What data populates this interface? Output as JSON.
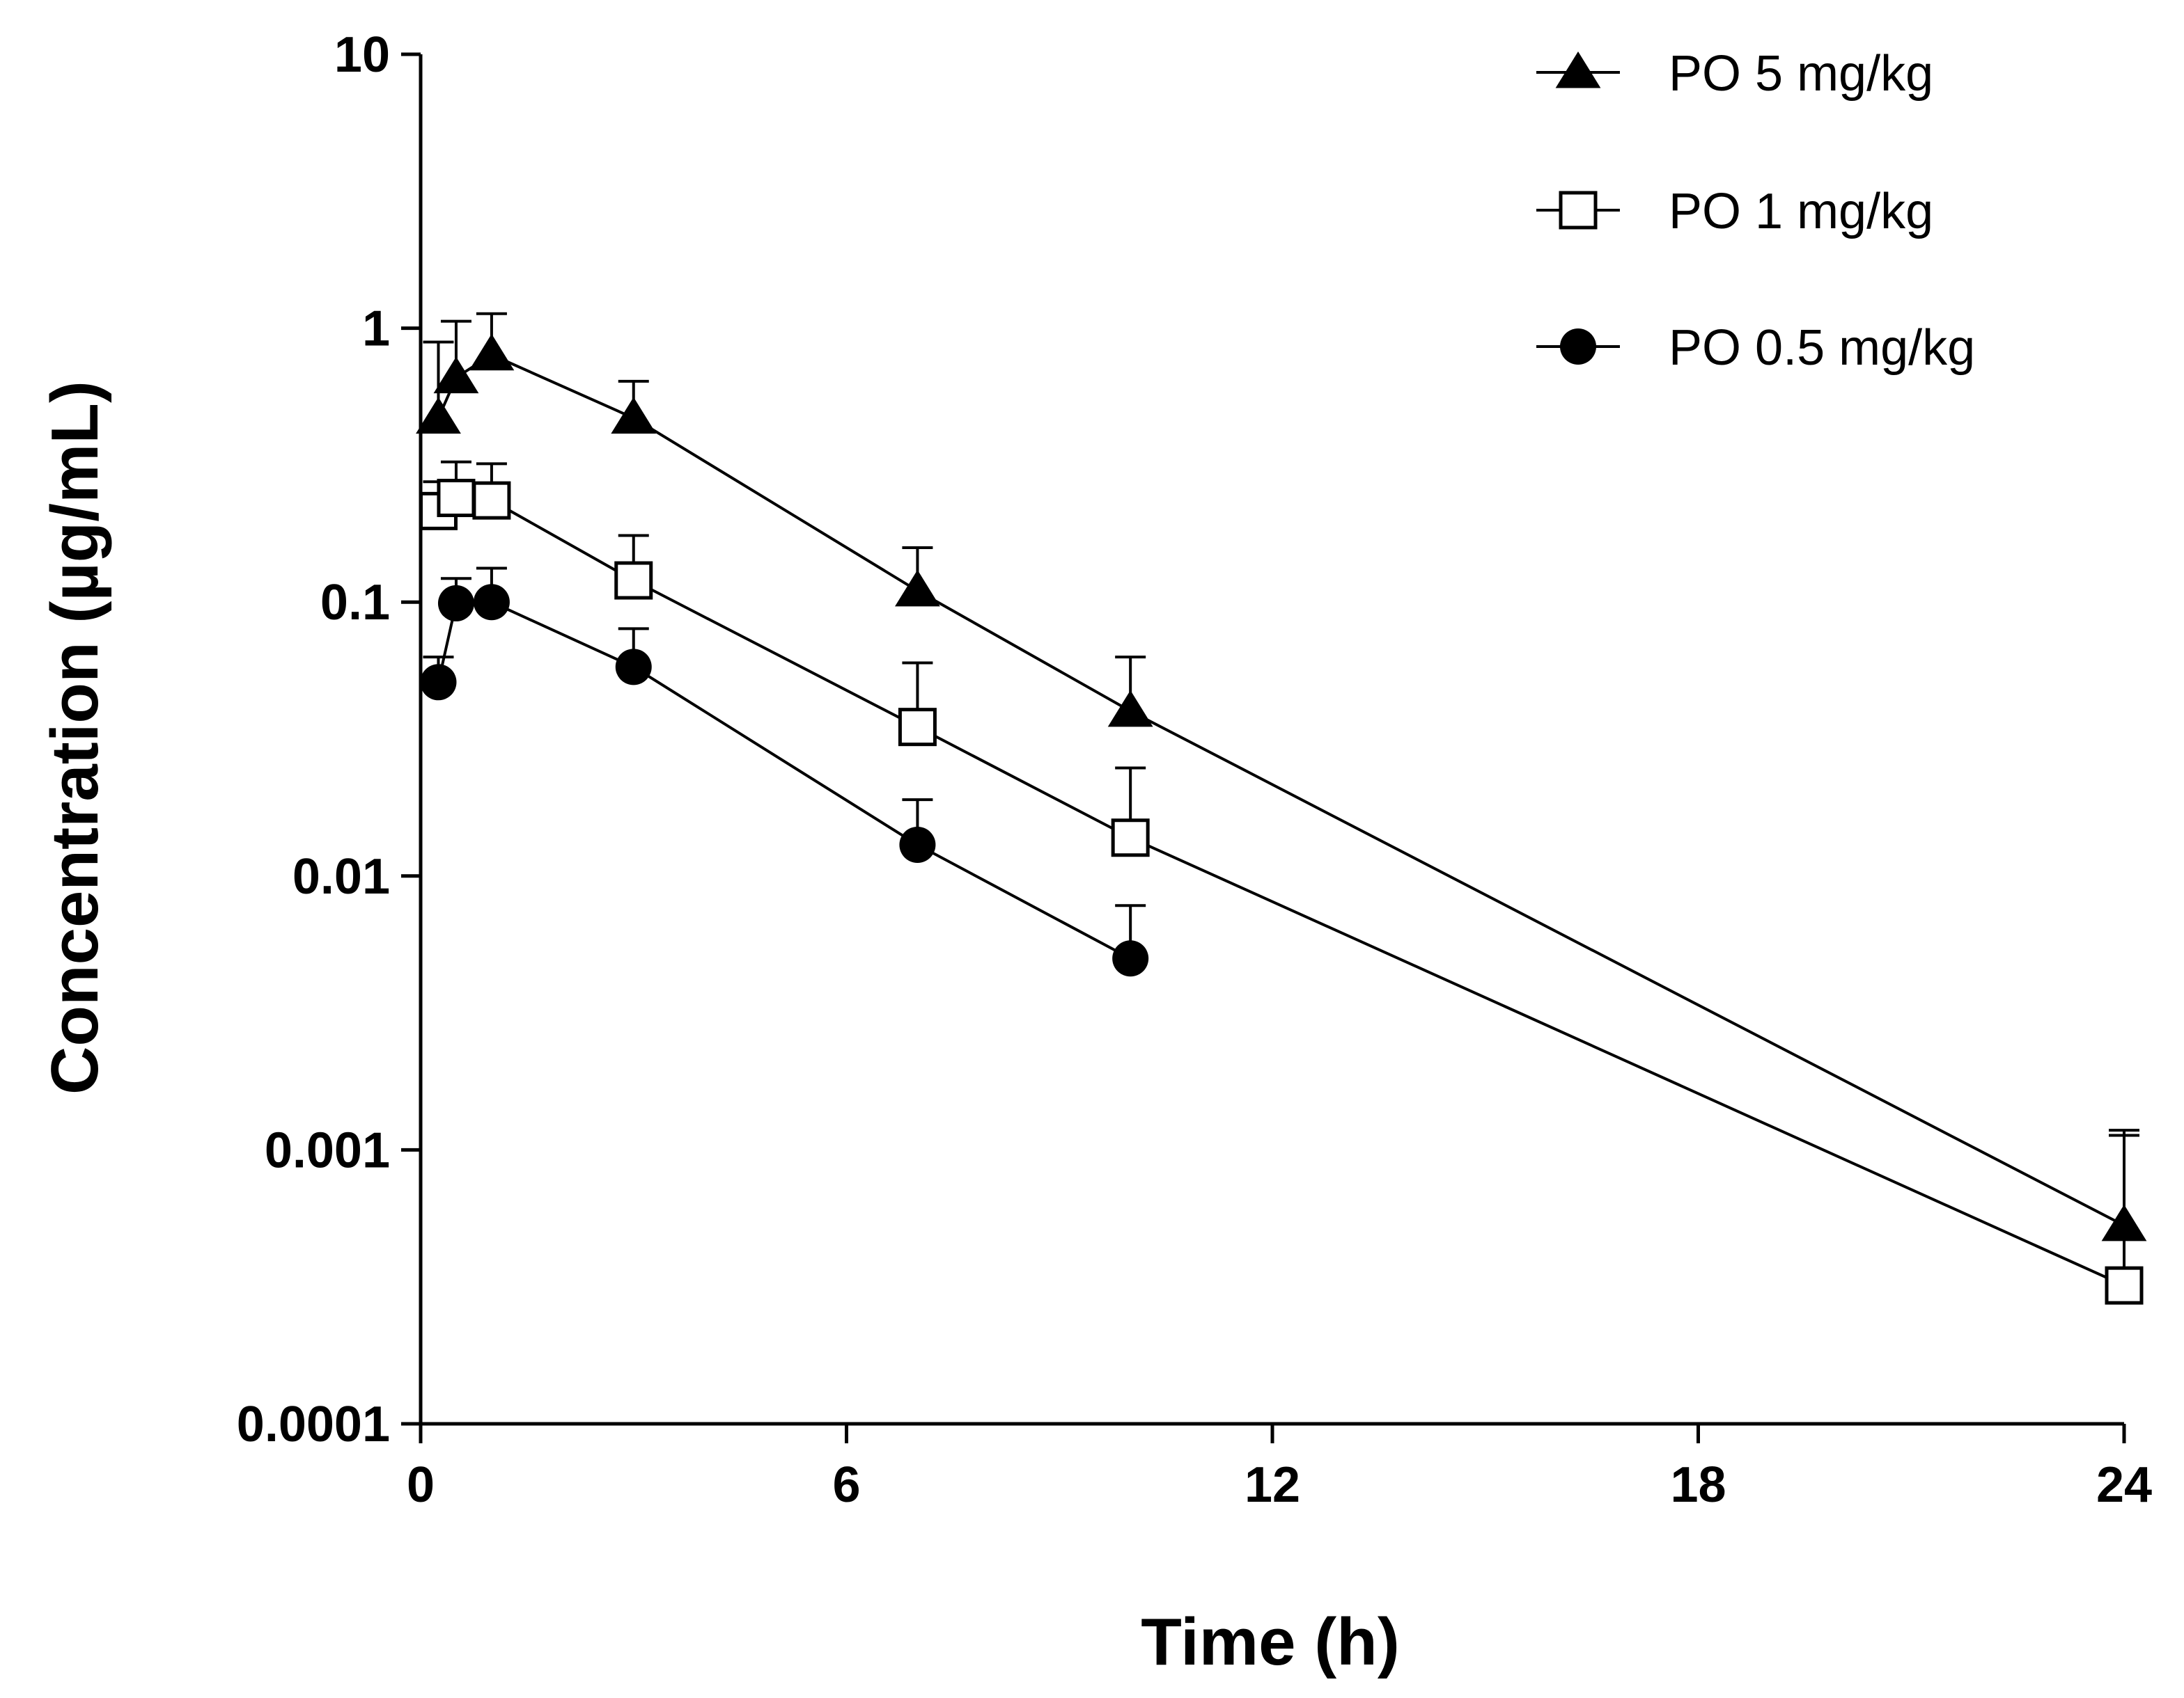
{
  "chart_data": {
    "type": "line",
    "title": "",
    "xlabel": "Time (h)",
    "ylabel": "Concentration (µg/mL)",
    "xscale": "linear",
    "yscale": "log",
    "xlim": [
      0,
      24
    ],
    "ylim": [
      0.0001,
      10
    ],
    "xticks": [
      0,
      6,
      12,
      18,
      24
    ],
    "xtick_labels": [
      "0",
      "6",
      "12",
      "18",
      "24"
    ],
    "yticks": [
      10,
      1,
      0.1,
      0.01,
      0.001,
      0.0001
    ],
    "ytick_labels": [
      "10",
      "1",
      "0.1",
      "0.01",
      "0.001",
      "0.0001"
    ],
    "legend_position": "top-right",
    "grid": false,
    "series": [
      {
        "name": "PO 5 mg/kg",
        "marker": "filled-triangle",
        "points": [
          {
            "x": 0.25,
            "y": 0.47,
            "err": 0.42
          },
          {
            "x": 0.5,
            "y": 0.66,
            "err": 0.4
          },
          {
            "x": 1,
            "y": 0.8,
            "err": 0.33
          },
          {
            "x": 3,
            "y": 0.47,
            "err": 0.17
          },
          {
            "x": 7,
            "y": 0.11,
            "err": 0.048
          },
          {
            "x": 10,
            "y": 0.04,
            "err": 0.023
          },
          {
            "x": 24,
            "y": 0.00053,
            "err": 0.00065
          }
        ]
      },
      {
        "name": "PO 1 mg/kg",
        "marker": "open-square",
        "points": [
          {
            "x": 0.25,
            "y": 0.215,
            "err": 0.06
          },
          {
            "x": 0.5,
            "y": 0.24,
            "err": 0.085
          },
          {
            "x": 1,
            "y": 0.235,
            "err": 0.085
          },
          {
            "x": 3,
            "y": 0.12,
            "err": 0.055
          },
          {
            "x": 7,
            "y": 0.035,
            "err": 0.025
          },
          {
            "x": 10,
            "y": 0.0138,
            "err": 0.011
          },
          {
            "x": 24,
            "y": 0.00032,
            "err": 0.00081
          }
        ]
      },
      {
        "name": "PO 0.5 mg/kg",
        "marker": "filled-circle",
        "points": [
          {
            "x": 0.25,
            "y": 0.051,
            "err": 0.012
          },
          {
            "x": 0.5,
            "y": 0.099,
            "err": 0.023
          },
          {
            "x": 1,
            "y": 0.1,
            "err": 0.033
          },
          {
            "x": 3,
            "y": 0.058,
            "err": 0.022
          },
          {
            "x": 7,
            "y": 0.013,
            "err": 0.006
          },
          {
            "x": 10,
            "y": 0.005,
            "err": 0.0028
          }
        ]
      }
    ]
  },
  "colors": {
    "ink": "#000000",
    "background": "#ffffff"
  }
}
